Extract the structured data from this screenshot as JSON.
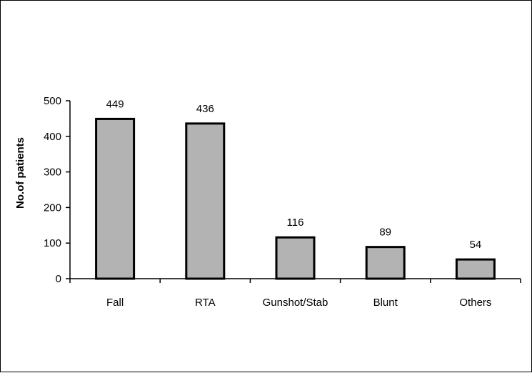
{
  "chart_data": {
    "type": "bar",
    "title": "",
    "xlabel": "",
    "ylabel": "No.of patients",
    "categories": [
      "Fall",
      "RTA",
      "Gunshot/Stab",
      "Blunt",
      "Others"
    ],
    "values": [
      449,
      436,
      116,
      89,
      54
    ],
    "data_labels": [
      "449",
      "436",
      "116",
      "89",
      "54"
    ],
    "ylim": [
      0,
      500
    ],
    "yticks": [
      0,
      100,
      200,
      300,
      400,
      500
    ],
    "grid": false,
    "legend": "none",
    "colors": {
      "bar_fill": "#b3b3b3",
      "bar_stroke": "#000000"
    }
  }
}
